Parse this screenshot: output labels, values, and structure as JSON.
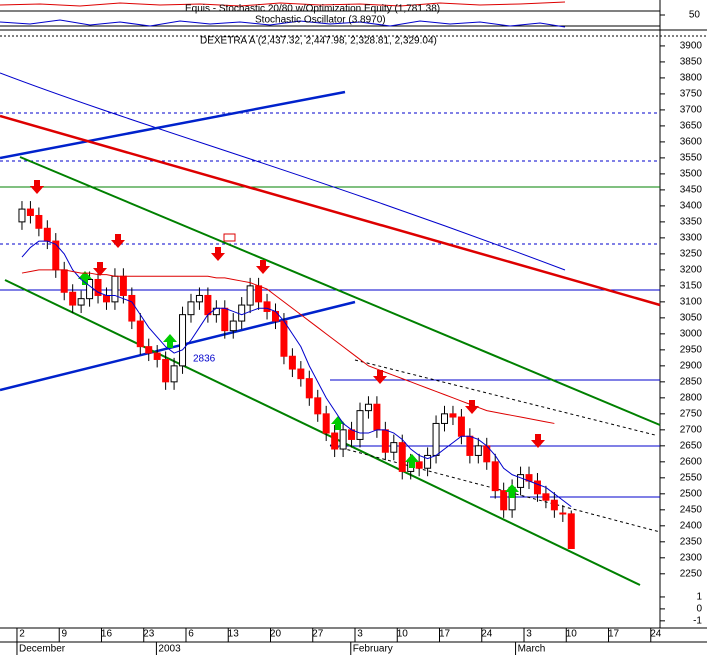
{
  "chart_data": {
    "type": "candlestick",
    "title": "Equis - Stochastic 20/80 w/Optimization Equity (1,781.38)",
    "subtitle": "Stochastic Oscillator (3.8970)",
    "legend": "DEXETRA A (2,437.32, 2,447.98, 2,328.81, 2,329.04)",
    "annotation": "2836",
    "up_color": "#ffffff",
    "down_color": "#ff0000",
    "xlim": [
      -2.6,
      75.5
    ],
    "xticks": [
      {
        "value": 0,
        "label": "2"
      },
      {
        "value": 5,
        "label": "9"
      },
      {
        "value": 10,
        "label": "16"
      },
      {
        "value": 15,
        "label": "23"
      },
      {
        "value": 20,
        "label": "6"
      },
      {
        "value": 25,
        "label": "13"
      },
      {
        "value": 30,
        "label": "20"
      },
      {
        "value": 35,
        "label": "27"
      },
      {
        "value": 40,
        "label": "3"
      },
      {
        "value": 45,
        "label": "10"
      },
      {
        "value": 50,
        "label": "17"
      },
      {
        "value": 55,
        "label": "24"
      },
      {
        "value": 60,
        "label": "3"
      },
      {
        "value": 65,
        "label": "10"
      },
      {
        "value": 70,
        "label": "17"
      },
      {
        "value": 75,
        "label": "24"
      }
    ],
    "month_labels": [
      {
        "value": 0,
        "label": "December"
      },
      {
        "value": 16.5,
        "label": "2003"
      },
      {
        "value": 39.5,
        "label": "February"
      },
      {
        "value": 59,
        "label": "March"
      }
    ],
    "ylim": [
      2215,
      3931
    ],
    "yticks": [
      3900,
      3850,
      3800,
      3750,
      3700,
      3650,
      3600,
      3550,
      3500,
      3450,
      3400,
      3350,
      3300,
      3250,
      3200,
      3150,
      3100,
      3050,
      3000,
      2950,
      2900,
      2850,
      2800,
      2750,
      2700,
      2650,
      2600,
      2550,
      2500,
      2450,
      2400,
      2350,
      2300,
      2250
    ],
    "stoch_ylim": [
      0,
      100
    ],
    "stoch_yticks": [
      50
    ],
    "lower_ylim": [
      -1.6,
      2
    ],
    "lower_yticks": [
      1,
      0,
      -1
    ],
    "x": [
      0,
      1,
      2,
      3,
      4,
      5,
      6,
      7,
      8,
      9,
      10,
      11,
      12,
      13,
      14,
      15,
      16,
      17,
      18,
      19,
      20,
      21,
      22,
      23,
      24,
      25,
      26,
      27,
      28,
      29,
      30,
      31,
      32,
      33,
      34,
      35,
      36,
      37,
      38,
      39,
      40,
      41,
      42,
      43,
      44,
      45,
      46,
      47,
      48,
      49,
      50,
      51,
      52,
      53,
      54,
      55,
      56,
      57,
      58,
      59,
      60,
      61,
      62,
      63,
      64,
      65
    ],
    "open": [
      3350,
      3390,
      3370,
      3330,
      3290,
      3200,
      3130,
      3090,
      3110,
      3170,
      3120,
      3100,
      3180,
      3120,
      3040,
      2960,
      2940,
      2920,
      2850,
      2900,
      3060,
      3100,
      3120,
      3060,
      3080,
      3010,
      3040,
      3090,
      3150,
      3100,
      3070,
      3040,
      2930,
      2890,
      2860,
      2800,
      2750,
      2690,
      2640,
      2700,
      2670,
      2760,
      2780,
      2700,
      2630,
      2660,
      2570,
      2600,
      2580,
      2620,
      2720,
      2750,
      2740,
      2680,
      2620,
      2650,
      2600,
      2510,
      2450,
      2520,
      2560,
      2540,
      2500,
      2480,
      2440,
      2437.32
    ],
    "high": [
      3415,
      3415,
      3395,
      3355,
      3315,
      3225,
      3155,
      3135,
      3195,
      3195,
      3145,
      3205,
      3205,
      3145,
      3065,
      2985,
      2965,
      2945,
      2925,
      3085,
      3125,
      3145,
      3145,
      3105,
      3105,
      3065,
      3115,
      3175,
      3175,
      3125,
      3095,
      3065,
      2955,
      2915,
      2885,
      2825,
      2775,
      2715,
      2725,
      2725,
      2785,
      2805,
      2805,
      2725,
      2685,
      2685,
      2625,
      2625,
      2645,
      2745,
      2775,
      2775,
      2765,
      2705,
      2675,
      2675,
      2625,
      2535,
      2545,
      2585,
      2585,
      2565,
      2525,
      2505,
      2465,
      2447.98
    ],
    "low": [
      3325,
      3345,
      3305,
      3265,
      3175,
      3105,
      3065,
      3065,
      3085,
      3095,
      3075,
      3075,
      3095,
      3015,
      2935,
      2915,
      2895,
      2825,
      2825,
      2875,
      3035,
      3075,
      3035,
      3035,
      2985,
      2985,
      3015,
      3065,
      3075,
      3045,
      3015,
      2905,
      2865,
      2835,
      2775,
      2725,
      2665,
      2615,
      2615,
      2645,
      2645,
      2735,
      2675,
      2605,
      2605,
      2545,
      2545,
      2555,
      2555,
      2595,
      2695,
      2715,
      2655,
      2595,
      2595,
      2575,
      2485,
      2425,
      2425,
      2495,
      2515,
      2475,
      2455,
      2425,
      2412,
      2328.81
    ],
    "close": [
      3390,
      3370,
      3330,
      3290,
      3200,
      3130,
      3090,
      3110,
      3170,
      3120,
      3100,
      3180,
      3120,
      3040,
      2960,
      2940,
      2920,
      2850,
      2900,
      3060,
      3100,
      3120,
      3060,
      3080,
      3010,
      3040,
      3090,
      3150,
      3100,
      3070,
      3040,
      2930,
      2890,
      2860,
      2800,
      2750,
      2690,
      2640,
      2700,
      2670,
      2760,
      2780,
      2700,
      2630,
      2660,
      2570,
      2600,
      2580,
      2620,
      2720,
      2750,
      2740,
      2680,
      2620,
      2650,
      2600,
      2510,
      2450,
      2520,
      2560,
      2540,
      2500,
      2480,
      2450,
      2437,
      2329.04
    ],
    "overlays": [
      {
        "color": "#0000cc",
        "values": [
          3240,
          3270,
          3290,
          3290,
          3280,
          3250,
          3200,
          3170,
          3150,
          3130,
          3120,
          3120,
          3110,
          3100,
          3060,
          3020,
          2990,
          2960,
          2940,
          2950,
          2980,
          3020,
          3060,
          3080,
          3080,
          3070,
          3060,
          3070,
          3080,
          3080,
          3070,
          3040,
          3000,
          2960,
          2900,
          2850,
          2800,
          2760,
          2720,
          2700,
          2690,
          2690,
          2700,
          2700,
          2690,
          2670,
          2640,
          2620,
          2610,
          2620,
          2640,
          2660,
          2680,
          2680,
          2670,
          2650,
          2620,
          2580,
          2560,
          2550,
          2540,
          2530,
          2520,
          2500,
          2480,
          2460
        ]
      },
      {
        "color": "#dd0000",
        "values": [
          3190,
          3195,
          3200,
          3200,
          3200,
          3200,
          3195,
          3190,
          3190,
          3185,
          3185,
          3180,
          3180,
          3180,
          3180,
          3180,
          3180,
          3180,
          3180,
          3180,
          3180,
          3180,
          3180,
          3175,
          3175,
          3170,
          3165,
          3160,
          3150,
          3140,
          3120,
          3100,
          3080,
          3060,
          3040,
          3020,
          3000,
          2980,
          2960,
          2940,
          2920,
          2900,
          2890,
          2880,
          2870,
          2860,
          2850,
          2840,
          2830,
          2820,
          2810,
          2800,
          2790,
          2780,
          2770,
          2760,
          2755,
          2750,
          2745,
          2740,
          2735,
          2730,
          2725,
          2720,
          null,
          null
        ]
      }
    ]
  }
}
